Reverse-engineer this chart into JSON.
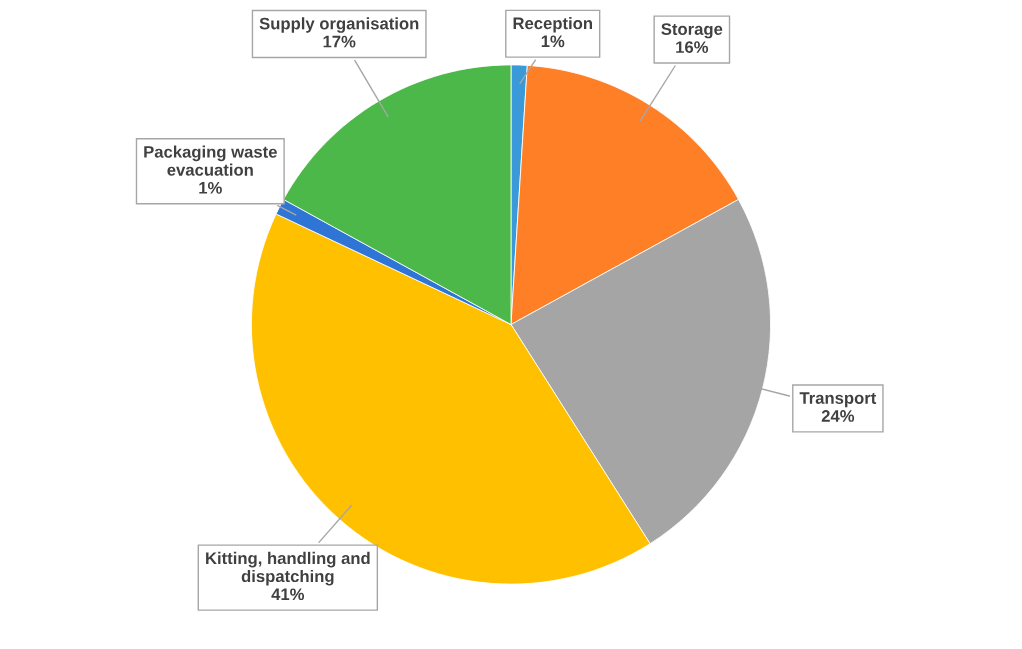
{
  "chart_data": {
    "type": "pie",
    "categories": [
      "Reception",
      "Storage",
      "Transport",
      "Kitting, handling and\ndispatching",
      "Packaging waste\nevacuation",
      "Supply organisation"
    ],
    "values": [
      1,
      16,
      24,
      41,
      1,
      17
    ],
    "value_labels": [
      "1%",
      "16%",
      "24%",
      "41%",
      "1%",
      "17%"
    ],
    "colors": [
      "#3a9ad9",
      "#ff7f27",
      "#a5a5a5",
      "#ffc000",
      "#2e75d6",
      "#4cb849"
    ],
    "legend": false
  }
}
